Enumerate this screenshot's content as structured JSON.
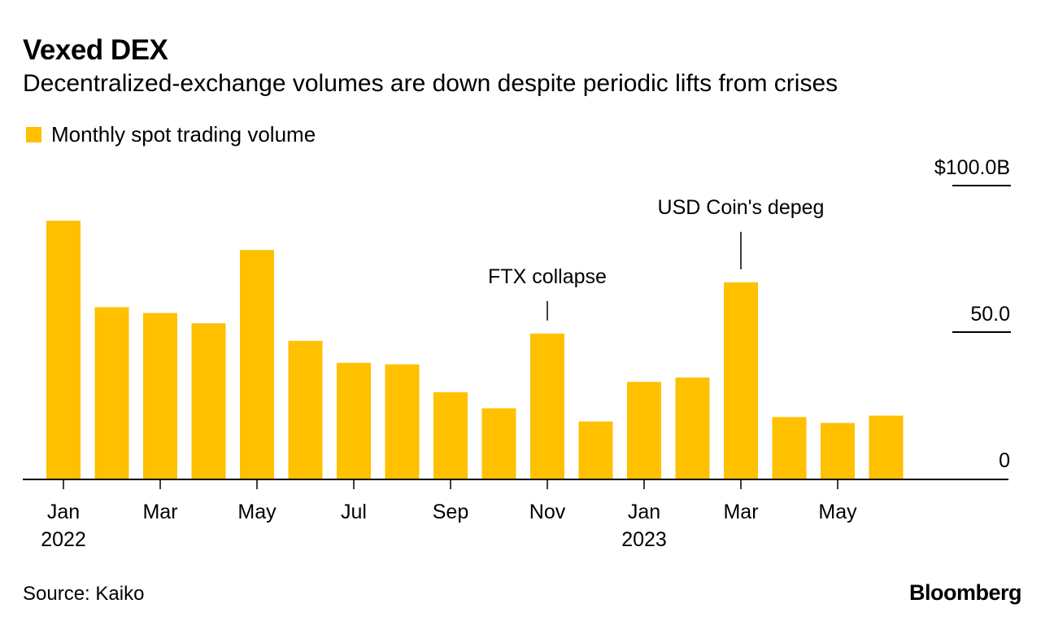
{
  "title": "Vexed DEX",
  "subtitle": "Decentralized-exchange volumes are down despite periodic lifts from crises",
  "legend": {
    "label": "Monthly spot trading volume"
  },
  "source": "Source: Kaiko",
  "brand": "Bloomberg",
  "colors": {
    "bar": "#FFC000",
    "axis": "#000000"
  },
  "chart_data": {
    "type": "bar",
    "categories": [
      "Jan 2022",
      "Feb 2022",
      "Mar 2022",
      "Apr 2022",
      "May 2022",
      "Jun 2022",
      "Jul 2022",
      "Aug 2022",
      "Sep 2022",
      "Oct 2022",
      "Nov 2022",
      "Dec 2022",
      "Jan 2023",
      "Feb 2023",
      "Mar 2023",
      "Apr 2023",
      "May 2023",
      "Jun 2023"
    ],
    "series": [
      {
        "name": "Monthly spot trading volume",
        "values": [
          88,
          58.5,
          56.5,
          53,
          78,
          47,
          39.5,
          39,
          29.5,
          24,
          49.5,
          19.5,
          33,
          34.5,
          67,
          21,
          19,
          21.5
        ]
      }
    ],
    "ylim": [
      0,
      100
    ],
    "y_ticks": [
      {
        "value": 100,
        "label": "$100.0B"
      },
      {
        "value": 50,
        "label": "50.0"
      },
      {
        "value": 0,
        "label": "0"
      }
    ],
    "x_ticks": [
      {
        "index": 0,
        "month": "Jan",
        "year": "2022"
      },
      {
        "index": 2,
        "month": "Mar",
        "year": ""
      },
      {
        "index": 4,
        "month": "May",
        "year": ""
      },
      {
        "index": 6,
        "month": "Jul",
        "year": ""
      },
      {
        "index": 8,
        "month": "Sep",
        "year": ""
      },
      {
        "index": 10,
        "month": "Nov",
        "year": ""
      },
      {
        "index": 12,
        "month": "Jan",
        "year": "2023"
      },
      {
        "index": 14,
        "month": "Mar",
        "year": ""
      },
      {
        "index": 16,
        "month": "May",
        "year": ""
      }
    ],
    "annotations": [
      {
        "index": 10,
        "text": "FTX collapse"
      },
      {
        "index": 14,
        "text": "USD Coin's depeg"
      }
    ],
    "xlabel": "",
    "ylabel": ""
  }
}
